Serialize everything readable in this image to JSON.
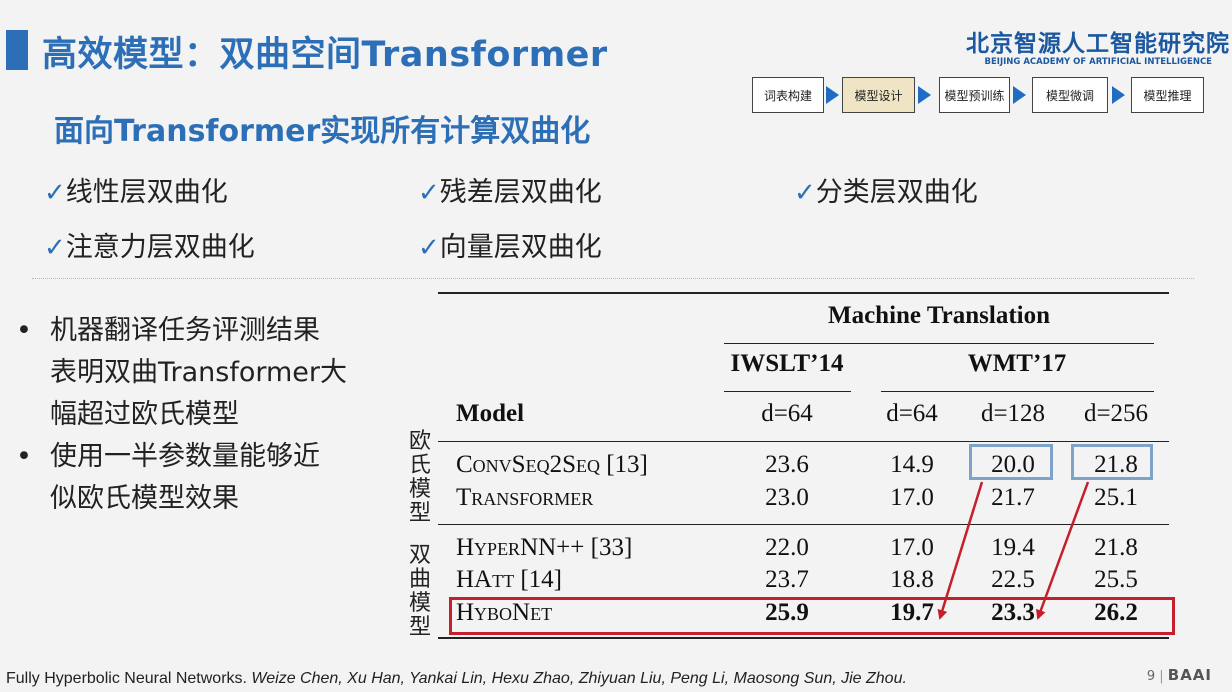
{
  "title": "高效模型：双曲空间Transformer",
  "logo": {
    "cn": "北京智源人工智能研究院",
    "en": "BEIJING ACADEMY OF ARTIFICIAL INTELLIGENCE"
  },
  "pipeline": [
    {
      "label": "词表构建",
      "active": false
    },
    {
      "label": "模型设计",
      "active": true
    },
    {
      "label": "模型预训练",
      "active": false
    },
    {
      "label": "模型微调",
      "active": false
    },
    {
      "label": "模型推理",
      "active": false
    }
  ],
  "subtitle": "面向Transformer实现所有计算双曲化",
  "check_mark": "✓",
  "checks": [
    "线性层双曲化",
    "残差层双曲化",
    "分类层双曲化",
    "注意力层双曲化",
    "向量层双曲化"
  ],
  "bullet_symbol": "•",
  "bullets": [
    {
      "lines": [
        "机器翻译任务评测结果",
        "表明双曲Transformer大",
        "幅超过欧氏模型"
      ]
    },
    {
      "lines": [
        "使用一半参数量能够近",
        "似欧氏模型效果"
      ]
    }
  ],
  "table": {
    "group_header": "Machine Translation",
    "datasets": [
      "IWSLT’14",
      "WMT’17"
    ],
    "model_header": "Model",
    "dims": [
      "d=64",
      "d=64",
      "d=128",
      "d=256"
    ],
    "euclid_label": "欧氏模型",
    "hyper_label": "双曲模型",
    "euclid_rows": [
      {
        "model": "ConvSeq2Seq [13]",
        "values": [
          "23.6",
          "14.9",
          "20.0",
          "21.8"
        ]
      },
      {
        "model": "Transformer",
        "values": [
          "23.0",
          "17.0",
          "21.7",
          "25.1"
        ]
      }
    ],
    "hyper_rows": [
      {
        "model": "HyperNN++ [33]",
        "values": [
          "22.0",
          "17.0",
          "19.4",
          "21.8"
        ]
      },
      {
        "model": "HAtt [14]",
        "values": [
          "23.7",
          "18.8",
          "22.5",
          "25.5"
        ]
      },
      {
        "model": "HyboNet",
        "values": [
          "25.9",
          "19.7",
          "23.3",
          "26.2"
        ]
      }
    ]
  },
  "citation": {
    "title": "Fully Hyperbolic Neural Networks.",
    "authors": "Weize Chen, Xu Han, Yankai Lin, Hexu Zhao, Zhiyuan Liu, Peng Li, Maosong Sun, Jie Zhou."
  },
  "page": {
    "number": "9",
    "brand": "BAAI"
  },
  "colors": {
    "accent": "#2c6fb7",
    "highlight_red": "#c41f2b",
    "highlight_blue": "#7fa2c8",
    "arrow_red": "#c41f2b"
  }
}
